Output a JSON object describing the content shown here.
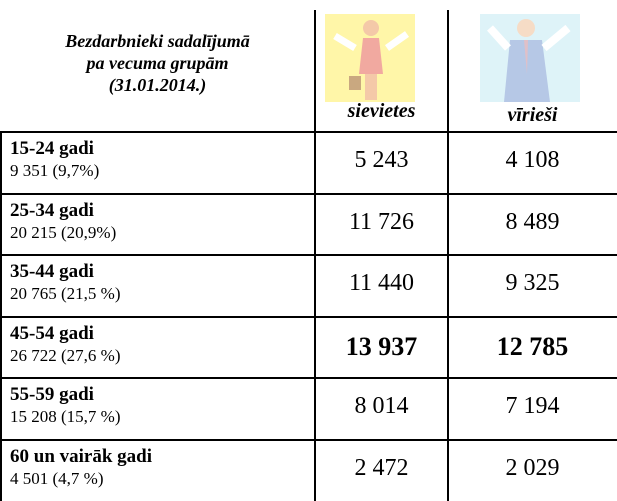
{
  "header": {
    "title_lines": [
      "Bezdarbnieki sadalījumā",
      "pa vecuma grupām",
      "(31.01.2014.)"
    ],
    "columns": [
      "sievietes",
      "vīrieši"
    ]
  },
  "table": {
    "highlight_row": 3,
    "rows": [
      [
        "15-24 gadi",
        "9 351 (9,7%)",
        "5 243",
        "4 108"
      ],
      [
        "25-34 gadi",
        "20 215 (20,9%)",
        "11 726",
        "8 489"
      ],
      [
        "35-44 gadi",
        "20 765 (21,5 %)",
        "11 440",
        "9 325"
      ],
      [
        "45-54 gadi",
        "26 722 (27,6 %)",
        "13 937",
        "12 785"
      ],
      [
        "55-59 gadi",
        "15 208 (15,7 %)",
        "8 014",
        "7 194"
      ],
      [
        "60 un vairāk gadi",
        "4 501 (4,7 %)",
        "2 472",
        "2 029"
      ]
    ]
  }
}
